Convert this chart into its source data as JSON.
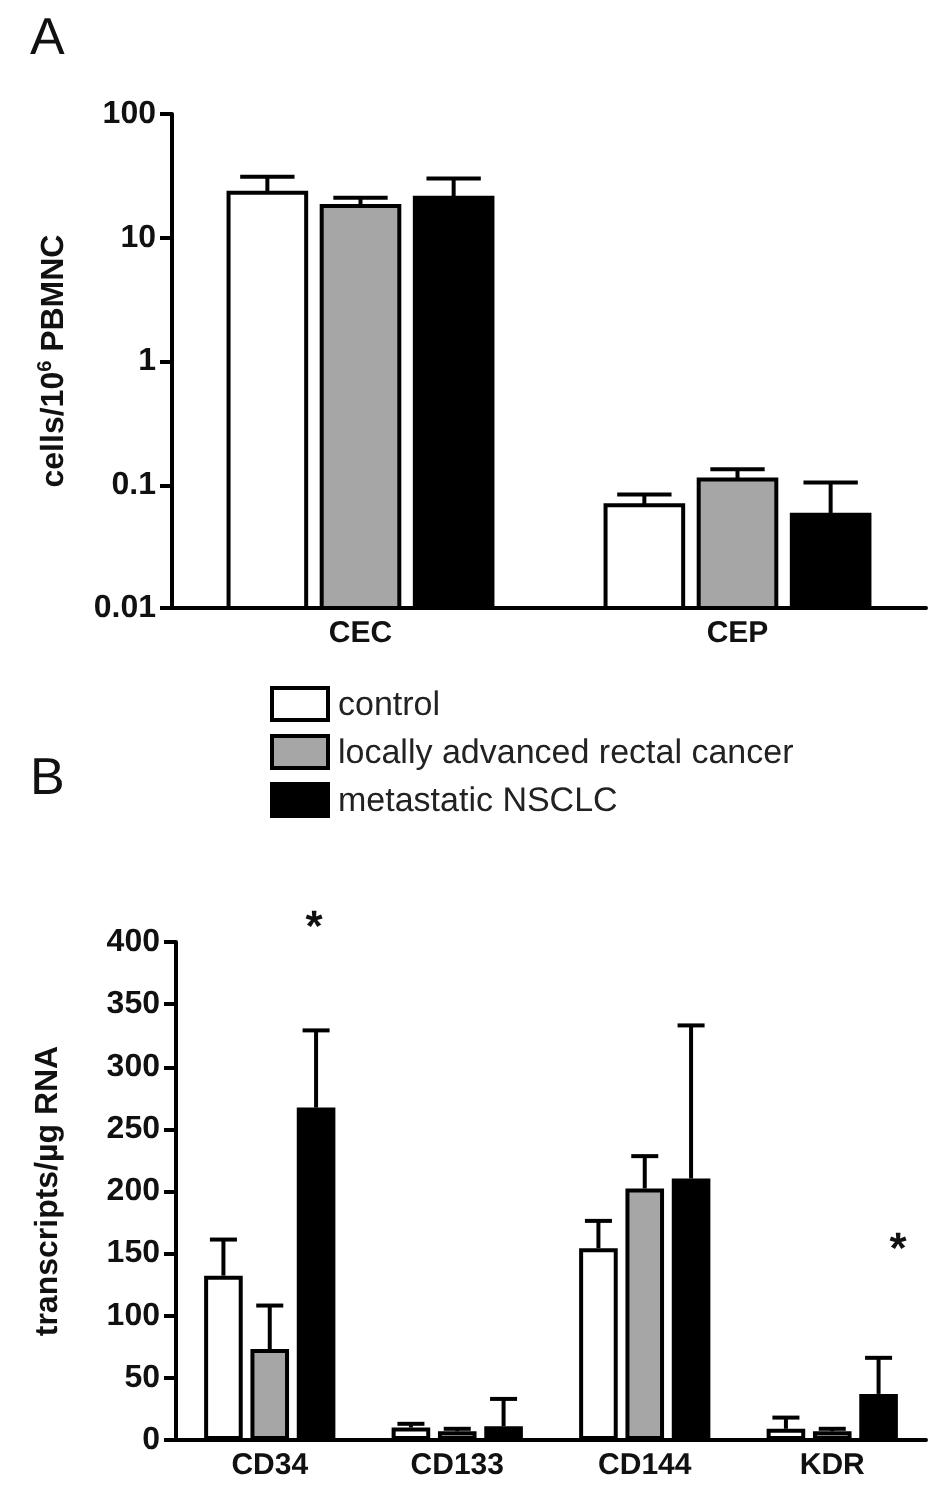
{
  "chart_data": [
    {
      "type": "bar",
      "title": "A",
      "categories": [
        "CEC",
        "CEP"
      ],
      "ylabel": "cells/10$^{6}$ PBMNC",
      "log": true,
      "ylim": [
        0.01,
        100
      ],
      "yticks": [
        0.01,
        0.1,
        1,
        10,
        100
      ],
      "grid": false,
      "legend": false,
      "series": [
        {
          "color": "#ffffff",
          "values": [
            23,
            0.068
          ],
          "errors": [
            [
              23,
              31
            ],
            [
              0.068,
              0.083
            ]
          ]
        },
        {
          "color": "#a6a6a6",
          "values": [
            18,
            0.11
          ],
          "errors": [
            [
              18,
              21
            ],
            [
              0.11,
              0.133
            ]
          ]
        },
        {
          "color": "#000000",
          "values": [
            21,
            0.057
          ],
          "errors": [
            [
              21,
              30
            ],
            [
              0.057,
              0.104
            ]
          ]
        }
      ]
    },
    {
      "type": "bar",
      "title": "B",
      "categories": [
        "CD34",
        "CD133",
        "CD144",
        "KDR"
      ],
      "ylabel": "transcripts/µg RNA",
      "ylim": [
        0,
        400
      ],
      "yticks": [
        0,
        50,
        100,
        150,
        200,
        250,
        300,
        350,
        400
      ],
      "grid": false,
      "legend": "top",
      "annotations": [
        "*",
        "*"
      ],
      "series": [
        {
          "name": "control",
          "color": "#ffffff",
          "values": [
            132,
            10,
            154,
            9
          ],
          "errors": [
            [
              132,
              161
            ],
            [
              10,
              13
            ],
            [
              154,
              176
            ],
            [
              9,
              18
            ]
          ]
        },
        {
          "name": "locally advanced rectal cancer",
          "color": "#a6a6a6",
          "values": [
            73,
            7,
            202,
            7
          ],
          "errors": [
            [
              73,
              108
            ],
            [
              7,
              9
            ],
            [
              202,
              228
            ],
            [
              7,
              9
            ]
          ]
        },
        {
          "name": "metastatic NSCLC",
          "color": "#000000",
          "values": [
            267,
            11,
            210,
            37
          ],
          "errors": [
            [
              267,
              329
            ],
            [
              11,
              33
            ],
            [
              210,
              333
            ],
            [
              37,
              66
            ]
          ]
        }
      ]
    }
  ]
}
